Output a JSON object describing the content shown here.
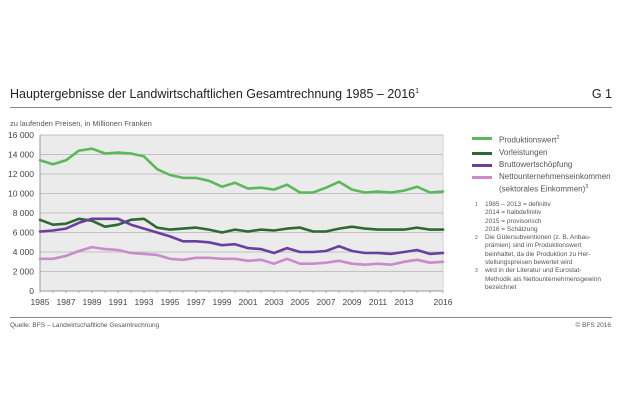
{
  "header": {
    "title": "Hauptergebnisse der Landwirtschaftlichen Gesamtrechnung 1985 – 2016",
    "title_footnote": "1",
    "code": "G 1",
    "subtitle": "zu laufenden Preisen, in Millionen Franken"
  },
  "legend": [
    {
      "label": "Produktionswert",
      "sup": "2",
      "color": "#5cb85c"
    },
    {
      "label": "Vorleistungen",
      "sup": "",
      "color": "#2d6a32"
    },
    {
      "label": "Bruttowertschöpfung",
      "sup": "",
      "color": "#6b3fa0"
    },
    {
      "label": "Nettounternehmenseinkommen",
      "label2": "(sektorales Einkommen)",
      "sup": "3",
      "color": "#c98bc9"
    }
  ],
  "footnotes": [
    {
      "num": "1",
      "lines": [
        "1985 – 2013 = definitiv",
        "2014 = halbdefinitiv",
        "2015 = provisorisch",
        "2016 = Schätzung"
      ]
    },
    {
      "num": "2",
      "lines": [
        "Die Gütersubventionen (z. B. Anbau-",
        "prämien) sind im Produktionswert",
        "beinhaltet, da die Produktion zu Her-",
        "stellungspreisen bewertet wird"
      ]
    },
    {
      "num": "3",
      "lines": [
        "wird in der Literatur und Eurostat-",
        "Methodik als Nettounternehmensgewinn",
        "bezeichnet"
      ]
    }
  ],
  "footer": {
    "source": "Quelle: BFS – Landwirtschaftliche Gesamtrechnung",
    "copyright": "© BFS 2016"
  },
  "chart_data": {
    "type": "line",
    "title": "Hauptergebnisse der Landwirtschaftlichen Gesamtrechnung 1985 – 2016",
    "xlabel": "",
    "ylabel": "zu laufenden Preisen, in Millionen Franken",
    "x": [
      1985,
      1986,
      1987,
      1988,
      1989,
      1990,
      1991,
      1992,
      1993,
      1994,
      1995,
      1996,
      1997,
      1998,
      1999,
      2000,
      2001,
      2002,
      2003,
      2004,
      2005,
      2006,
      2007,
      2008,
      2009,
      2010,
      2011,
      2012,
      2013,
      2014,
      2015,
      2016
    ],
    "x_tick_labels": [
      "1985",
      "1987",
      "1989",
      "1991",
      "1993",
      "1995",
      "1997",
      "1999",
      "2001",
      "2003",
      "2005",
      "2007",
      "2009",
      "2011",
      "2013",
      "2016"
    ],
    "y_tick_labels": [
      "0",
      "2 000",
      "4 000",
      "6 000",
      "8 000",
      "10 000",
      "12 000",
      "14 000",
      "16 000"
    ],
    "y_ticks": [
      0,
      2000,
      4000,
      6000,
      8000,
      10000,
      12000,
      14000,
      16000
    ],
    "ylim": [
      0,
      16000
    ],
    "xlim": [
      1985,
      2016
    ],
    "grid": true,
    "legend_position": "right",
    "series": [
      {
        "name": "Produktionswert",
        "color": "#5cb85c",
        "values": [
          13400,
          13000,
          13400,
          14400,
          14600,
          14100,
          14200,
          14100,
          13800,
          12500,
          11900,
          11600,
          11600,
          11300,
          10700,
          11100,
          10500,
          10600,
          10400,
          10900,
          10100,
          10100,
          10600,
          11200,
          10400,
          10100,
          10200,
          10100,
          10300,
          10700,
          10100,
          10200
        ]
      },
      {
        "name": "Vorleistungen",
        "color": "#2d6a32",
        "values": [
          7300,
          6800,
          6900,
          7400,
          7200,
          6600,
          6800,
          7300,
          7400,
          6500,
          6300,
          6400,
          6500,
          6300,
          6000,
          6300,
          6100,
          6300,
          6200,
          6400,
          6500,
          6100,
          6100,
          6400,
          6600,
          6400,
          6300,
          6300,
          6300,
          6500,
          6300,
          6300
        ]
      },
      {
        "name": "Bruttowertschöpfung",
        "color": "#6b3fa0",
        "values": [
          6100,
          6200,
          6400,
          7000,
          7400,
          7400,
          7400,
          6800,
          6400,
          6000,
          5600,
          5100,
          5100,
          5000,
          4700,
          4800,
          4400,
          4300,
          3900,
          4400,
          4000,
          4000,
          4100,
          4600,
          4100,
          3900,
          3900,
          3800,
          4000,
          4200,
          3800,
          3900
        ]
      },
      {
        "name": "Nettounternehmenseinkommen (sektorales Einkommen)",
        "color": "#c98bc9",
        "values": [
          3300,
          3300,
          3600,
          4100,
          4500,
          4300,
          4200,
          3900,
          3800,
          3700,
          3300,
          3200,
          3400,
          3400,
          3300,
          3300,
          3100,
          3200,
          2800,
          3300,
          2800,
          2800,
          2900,
          3100,
          2800,
          2700,
          2800,
          2700,
          3000,
          3200,
          2900,
          3000
        ]
      }
    ]
  }
}
